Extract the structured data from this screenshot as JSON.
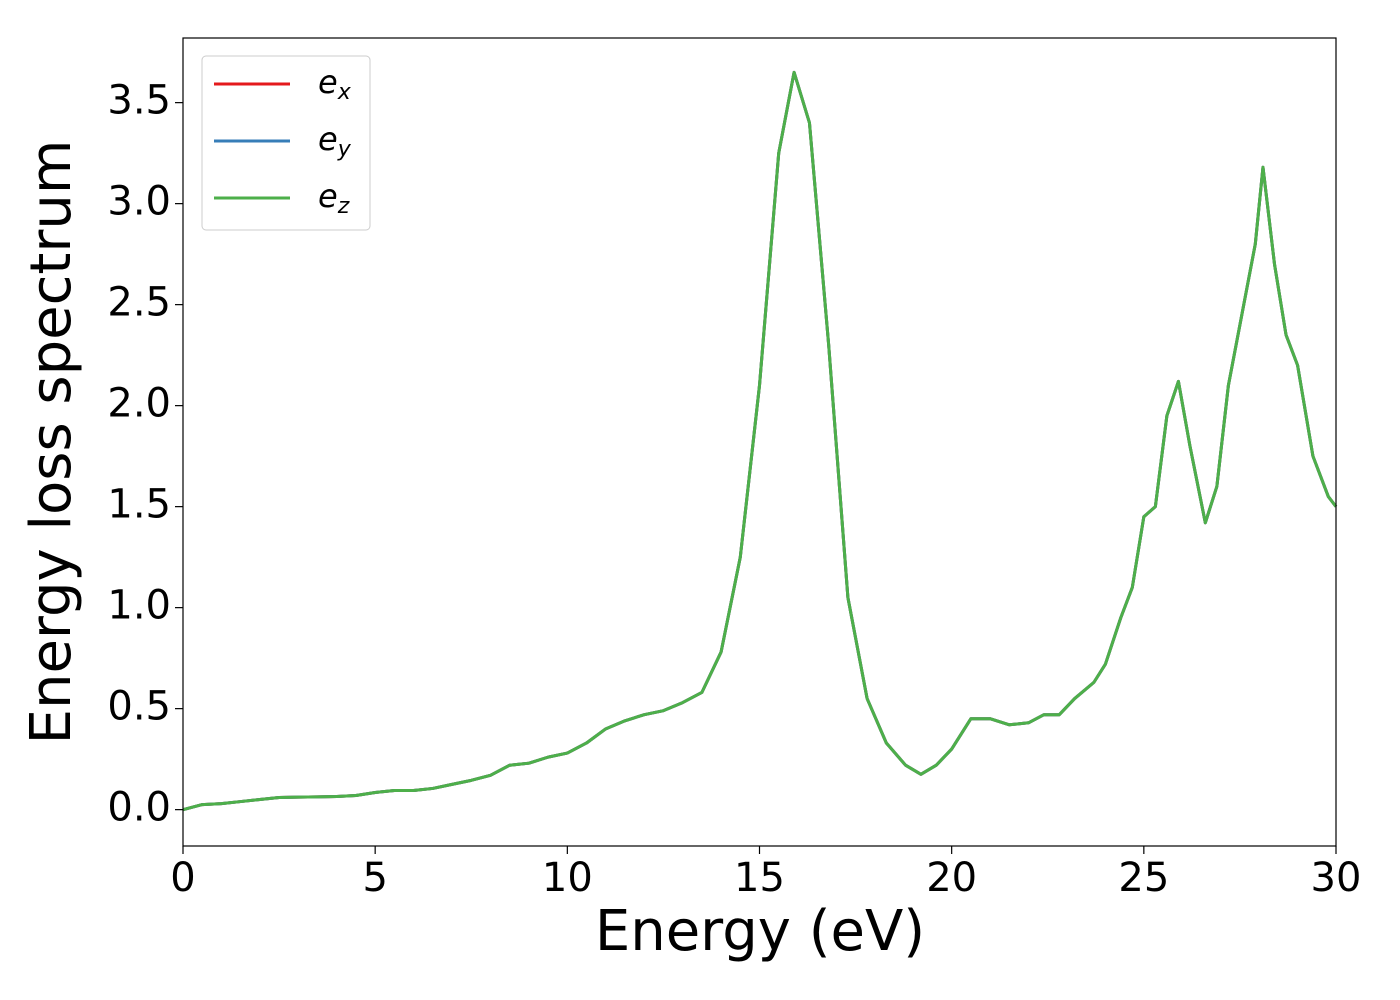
{
  "chart_data": {
    "type": "line",
    "x_label": "Energy (eV)",
    "y_label": "Energy loss spectrum",
    "x": [
      0,
      0.5,
      1.0,
      1.5,
      2.0,
      2.5,
      3.0,
      3.5,
      4.0,
      4.5,
      5.0,
      5.5,
      6.0,
      6.5,
      7.0,
      7.5,
      8.0,
      8.5,
      9.0,
      9.5,
      10.0,
      10.5,
      11.0,
      11.5,
      12.0,
      12.5,
      13.0,
      13.5,
      14.0,
      14.5,
      15.0,
      15.5,
      15.9,
      16.3,
      16.8,
      17.3,
      17.8,
      18.3,
      18.8,
      19.2,
      19.6,
      20.0,
      20.5,
      21.0,
      21.5,
      22.0,
      22.4,
      22.8,
      23.2,
      23.7,
      24.0,
      24.4,
      24.7,
      25.0,
      25.3,
      25.6,
      25.9,
      26.2,
      26.6,
      26.9,
      27.2,
      27.6,
      27.9,
      28.1,
      28.4,
      28.7,
      29.0,
      29.4,
      29.8,
      30.0
    ],
    "series": [
      {
        "name": "ex",
        "color": "#e41a1c",
        "values": [
          0.0,
          0.025,
          0.03,
          0.04,
          0.05,
          0.06,
          0.062,
          0.063,
          0.065,
          0.07,
          0.085,
          0.095,
          0.095,
          0.105,
          0.125,
          0.145,
          0.17,
          0.22,
          0.23,
          0.26,
          0.28,
          0.33,
          0.4,
          0.44,
          0.47,
          0.49,
          0.53,
          0.58,
          0.78,
          1.25,
          2.1,
          3.25,
          3.65,
          3.4,
          2.3,
          1.05,
          0.55,
          0.33,
          0.22,
          0.175,
          0.22,
          0.3,
          0.45,
          0.45,
          0.42,
          0.43,
          0.47,
          0.47,
          0.55,
          0.63,
          0.72,
          0.95,
          1.1,
          1.45,
          1.5,
          1.95,
          2.12,
          1.8,
          1.42,
          1.6,
          2.1,
          2.5,
          2.8,
          3.18,
          2.7,
          2.35,
          2.2,
          1.75,
          1.55,
          1.5
        ]
      },
      {
        "name": "ey",
        "color": "#377eb8",
        "values": [
          0.0,
          0.025,
          0.03,
          0.04,
          0.05,
          0.06,
          0.062,
          0.063,
          0.065,
          0.07,
          0.085,
          0.095,
          0.095,
          0.105,
          0.125,
          0.145,
          0.17,
          0.22,
          0.23,
          0.26,
          0.28,
          0.33,
          0.4,
          0.44,
          0.47,
          0.49,
          0.53,
          0.58,
          0.78,
          1.25,
          2.1,
          3.25,
          3.65,
          3.4,
          2.3,
          1.05,
          0.55,
          0.33,
          0.22,
          0.175,
          0.22,
          0.3,
          0.45,
          0.45,
          0.42,
          0.43,
          0.47,
          0.47,
          0.55,
          0.63,
          0.72,
          0.95,
          1.1,
          1.45,
          1.5,
          1.95,
          2.12,
          1.8,
          1.42,
          1.6,
          2.1,
          2.5,
          2.8,
          3.18,
          2.7,
          2.35,
          2.2,
          1.75,
          1.55,
          1.5
        ]
      },
      {
        "name": "ez",
        "color": "#4daf4a",
        "values": [
          0.0,
          0.025,
          0.03,
          0.04,
          0.05,
          0.06,
          0.062,
          0.063,
          0.065,
          0.07,
          0.085,
          0.095,
          0.095,
          0.105,
          0.125,
          0.145,
          0.17,
          0.22,
          0.23,
          0.26,
          0.28,
          0.33,
          0.4,
          0.44,
          0.47,
          0.49,
          0.53,
          0.58,
          0.78,
          1.25,
          2.1,
          3.25,
          3.65,
          3.4,
          2.3,
          1.05,
          0.55,
          0.33,
          0.22,
          0.175,
          0.22,
          0.3,
          0.45,
          0.45,
          0.42,
          0.43,
          0.47,
          0.47,
          0.55,
          0.63,
          0.72,
          0.95,
          1.1,
          1.45,
          1.5,
          1.95,
          2.12,
          1.8,
          1.42,
          1.6,
          2.1,
          2.5,
          2.8,
          3.18,
          2.7,
          2.35,
          2.2,
          1.75,
          1.55,
          1.5
        ]
      }
    ],
    "xlim": [
      0,
      30
    ],
    "xticks": [
      0,
      5,
      10,
      15,
      20,
      25,
      30
    ],
    "ylim": [
      -0.18,
      3.82
    ],
    "yticks": [
      {
        "value": 0,
        "label": "0.0"
      },
      0.5,
      {
        "value": 1,
        "label": "1.0"
      },
      1.5,
      {
        "value": 2,
        "label": "2.0"
      },
      2.5,
      {
        "value": 3,
        "label": "3.0"
      },
      3.5
    ],
    "grid": false,
    "legend": "upper left"
  }
}
